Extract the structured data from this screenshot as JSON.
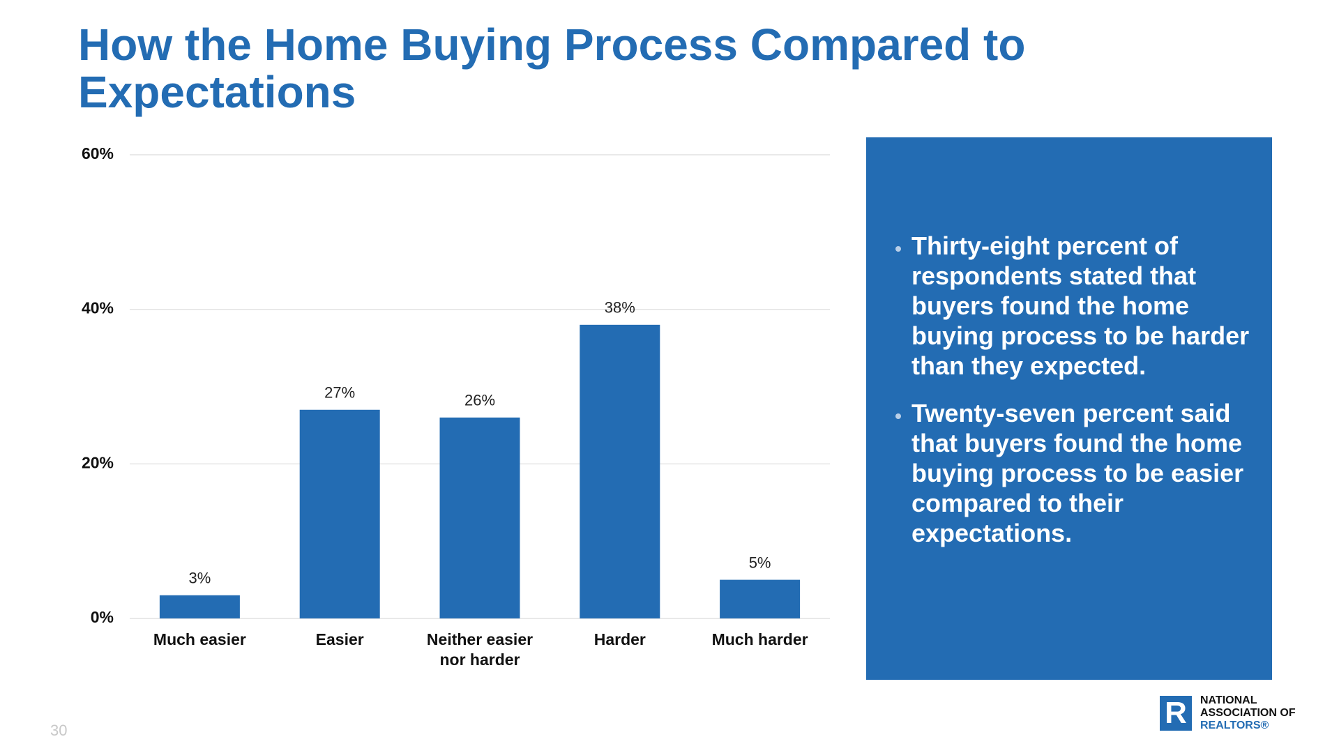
{
  "header": {
    "title": "How the Home Buying Process Compared to Expectations"
  },
  "chart_data": {
    "type": "bar",
    "categories": [
      "Much easier",
      "Easier",
      "Neither easier nor harder",
      "Harder",
      "Much harder"
    ],
    "values": [
      3,
      27,
      26,
      38,
      5
    ],
    "value_labels": [
      "3%",
      "27%",
      "26%",
      "38%",
      "5%"
    ],
    "color": "#236cb3",
    "ylim": [
      0,
      60
    ],
    "yticks": [
      {
        "value": 0,
        "label": "0%"
      },
      {
        "value": 20,
        "label": "20%"
      },
      {
        "value": 40,
        "label": "40%"
      },
      {
        "value": 60,
        "label": "60%"
      }
    ],
    "grid": true
  },
  "sidebar": {
    "bullets": [
      "Thirty-eight percent of respondents stated that buyers found the home buying process to be harder than they expected.",
      "Twenty-seven percent said that buyers found the home buying process to be easier compared to their expectations."
    ]
  },
  "footer": {
    "page_number": "30",
    "logo_lines": [
      "NATIONAL",
      "ASSOCIATION OF",
      "REALTORS®"
    ]
  }
}
